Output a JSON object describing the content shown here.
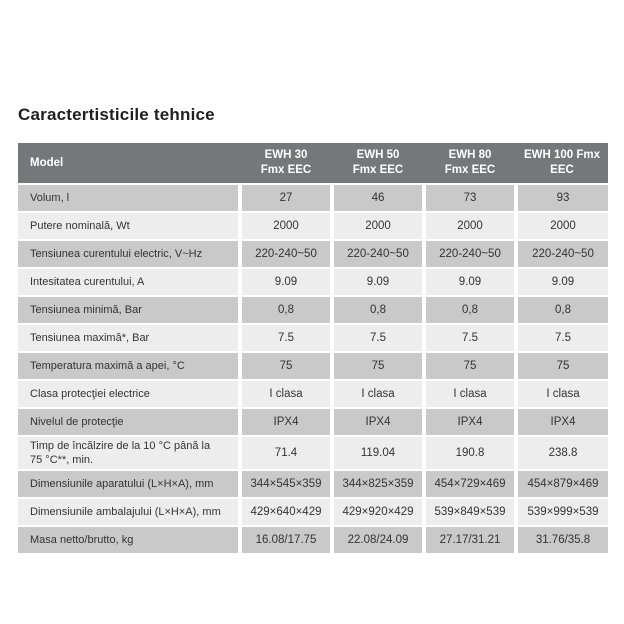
{
  "page_title": "Caractertisticile tehnice",
  "table": {
    "header": {
      "model_label": "Model",
      "columns": [
        "EWH 30\nFmx EEC",
        "EWH 50\nFmx EEC",
        "EWH 80\nFmx EEC",
        "EWH 100 Fmx\nEEC"
      ]
    },
    "rows": [
      {
        "label": "Volum, l",
        "values": [
          "27",
          "46",
          "73",
          "93"
        ]
      },
      {
        "label": "Putere nominală, Wt",
        "values": [
          "2000",
          "2000",
          "2000",
          "2000"
        ]
      },
      {
        "label": "Tensiunea curentului electric, V~Hz",
        "values": [
          "220-240~50",
          "220-240~50",
          "220-240~50",
          "220-240~50"
        ]
      },
      {
        "label": "Intesitatea curentului, A",
        "values": [
          "9.09",
          "9.09",
          "9.09",
          "9.09"
        ]
      },
      {
        "label": "Tensiunea minimă, Bar",
        "values": [
          "0,8",
          "0,8",
          "0,8",
          "0,8"
        ]
      },
      {
        "label": "Tensiunea maximă*, Bar",
        "values": [
          "7.5",
          "7.5",
          "7.5",
          "7.5"
        ]
      },
      {
        "label": "Temperatura maximă a apei, °C",
        "values": [
          "75",
          "75",
          "75",
          "75"
        ]
      },
      {
        "label": "Clasa protecţiei electrice",
        "values": [
          "I clasa",
          "I clasa",
          "I clasa",
          "I clasa"
        ]
      },
      {
        "label": "Nivelul de protecţie",
        "values": [
          "IPX4",
          "IPX4",
          "IPX4",
          "IPX4"
        ]
      },
      {
        "label": "Timp de încălzire de la 10 °C până la\n75 °C**, min.",
        "values": [
          "71.4",
          "119.04",
          "190.8",
          "238.8"
        ]
      },
      {
        "label": "Dimensiunile aparatului (L×H×A), mm",
        "values": [
          "344×545×359",
          "344×825×359",
          "454×729×469",
          "454×879×469"
        ]
      },
      {
        "label": "Dimensiunile ambalajului (L×H×A), mm",
        "values": [
          "429×640×429",
          "429×920×429",
          "539×849×539",
          "539×999×539"
        ]
      },
      {
        "label": "Masa netto/brutto, kg",
        "values": [
          "16.08/17.75",
          "22.08/24.09",
          "27.17/31.21",
          "31.76/35.8"
        ]
      }
    ],
    "colors": {
      "header_bg": "#76777A",
      "row_gray": "#C9C9C9",
      "row_light": "#EDEDEE",
      "header_text": "#FFFFFF",
      "body_text": "#333333"
    }
  }
}
